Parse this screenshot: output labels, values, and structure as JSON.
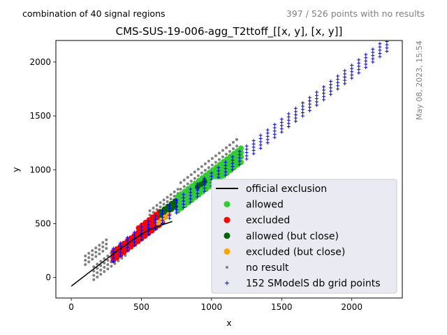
{
  "header": {
    "left_note": "combination of 40 signal regions",
    "right_note": "397 / 526 points with no results",
    "timestamp": "May 08, 2023, 15:54"
  },
  "colors": {
    "official_exclusion": "#000000",
    "allowed": "#32cd32",
    "excluded": "#ff0000",
    "allowed_close": "#006400",
    "excluded_close": "#ffa500",
    "no_result": "#808080",
    "grid_points": "#0000ff",
    "legend_bg": "#eaeaf2"
  },
  "chart_data": {
    "type": "scatter",
    "title": "CMS-SUS-19-006-agg_T2ttoff_[[x, y], [x, y]]",
    "xlabel": "x",
    "ylabel": "y",
    "xlim": [
      -110,
      2360
    ],
    "ylim": [
      -190,
      2200
    ],
    "xticks": [
      0,
      500,
      1000,
      1500,
      2000
    ],
    "yticks": [
      0,
      500,
      1000,
      1500,
      2000
    ],
    "grid": false,
    "legend_placement": "lower right",
    "legend": [
      {
        "key": "official_exclusion",
        "label": "official exclusion",
        "marker": "line"
      },
      {
        "key": "allowed",
        "label": "allowed",
        "marker": "circle"
      },
      {
        "key": "excluded",
        "label": "excluded",
        "marker": "circle"
      },
      {
        "key": "allowed_close",
        "label": "allowed (but close)",
        "marker": "circle"
      },
      {
        "key": "excluded_close",
        "label": "excluded (but close)",
        "marker": "circle"
      },
      {
        "key": "no_result",
        "label": "no result",
        "marker": "dot"
      },
      {
        "key": "grid_points",
        "label": "152 SModelS db grid points",
        "marker": "plus"
      }
    ],
    "official_exclusion": {
      "x": [
        0,
        150,
        300,
        450,
        550,
        650,
        720
      ],
      "y": [
        -80,
        70,
        220,
        360,
        440,
        490,
        520
      ]
    },
    "series": [
      {
        "key": "no_result",
        "bands": [
          {
            "x0": 100,
            "x1": 250,
            "offsets": [
              20,
              60,
              100
            ]
          },
          {
            "x0": 160,
            "x1": 400,
            "offsets": [
              -180,
              -140,
              -100,
              -60
            ]
          },
          {
            "x0": 560,
            "x1": 780,
            "offsets": [
              20,
              60
            ]
          },
          {
            "x0": 780,
            "x1": 1200,
            "offsets": [
              40,
              100
            ]
          }
        ]
      },
      {
        "key": "allowed",
        "bands": [
          {
            "x0": 760,
            "x1": 1230,
            "offsets": [
              -140,
              -90,
              -50,
              -10
            ]
          }
        ]
      },
      {
        "key": "excluded",
        "bands": [
          {
            "x0": 300,
            "x1": 660,
            "offsets": [
              -140,
              -100,
              -60
            ]
          },
          {
            "x0": 480,
            "x1": 640,
            "offsets": [
              -20
            ]
          }
        ]
      },
      {
        "key": "allowed_close",
        "bands": [
          {
            "x0": 640,
            "x1": 760,
            "offsets": [
              -80,
              -30
            ]
          },
          {
            "x0": 900,
            "x1": 950,
            "offsets": [
              -60
            ]
          }
        ]
      },
      {
        "key": "excluded_close",
        "bands": [
          {
            "x0": 620,
            "x1": 700,
            "offsets": [
              -110
            ]
          }
        ]
      },
      {
        "key": "grid_points",
        "bands": [
          {
            "x0": 300,
            "x1": 2250,
            "offsets": [
              -150,
              -120,
              -90,
              -60,
              -30
            ]
          }
        ]
      }
    ]
  }
}
